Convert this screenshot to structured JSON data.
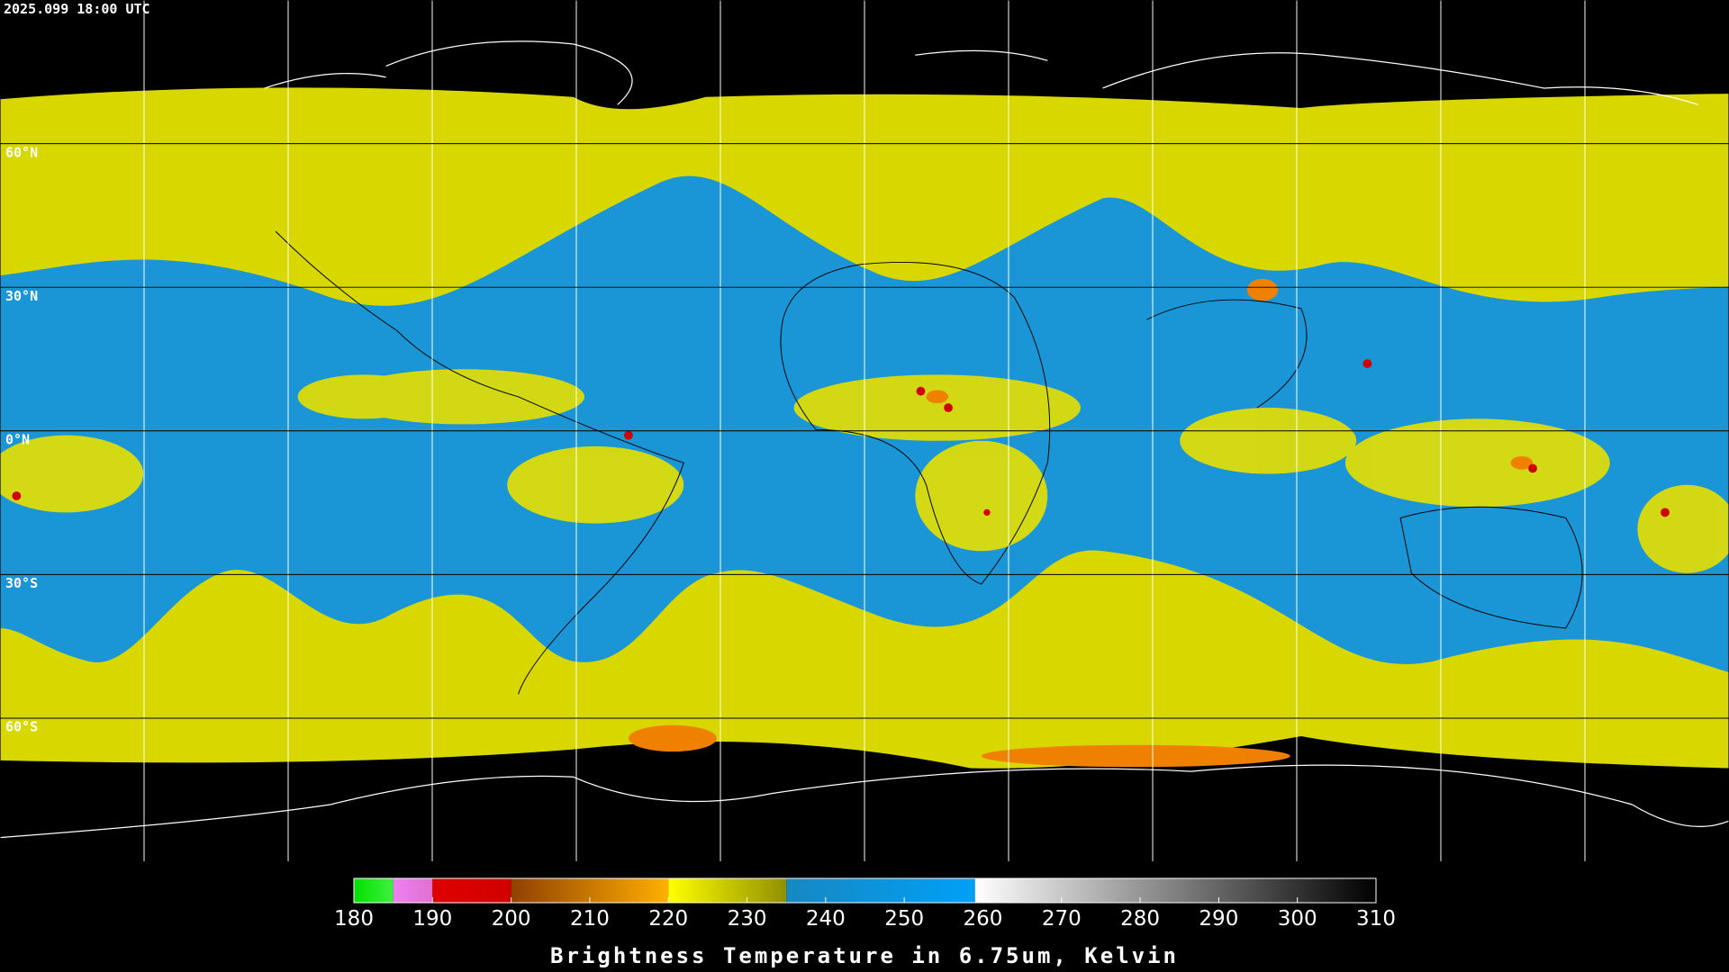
{
  "timestamp": "2025.099 18:00 UTC",
  "lat_labels": [
    "60°N",
    "30°N",
    "0°N",
    "30°S",
    "60°S"
  ],
  "colorbar": {
    "title": "Brightness Temperature in 6.75um, Kelvin",
    "range": [
      180,
      310
    ],
    "ticks": [
      180,
      190,
      200,
      210,
      220,
      230,
      240,
      250,
      260,
      270,
      280,
      290,
      300,
      310
    ],
    "segments": [
      {
        "from": 180,
        "to": 185,
        "colors": [
          "#00e000",
          "#40f040"
        ]
      },
      {
        "from": 185,
        "to": 190,
        "colors": [
          "#f080f0",
          "#e070d0"
        ]
      },
      {
        "from": 190,
        "to": 200,
        "colors": [
          "#e00000",
          "#d00000"
        ]
      },
      {
        "from": 200,
        "to": 220,
        "colors": [
          "#904000",
          "#ffb000"
        ]
      },
      {
        "from": 220,
        "to": 235,
        "colors": [
          "#ffff00",
          "#909000"
        ]
      },
      {
        "from": 235,
        "to": 259,
        "colors": [
          "#1888c0",
          "#00a0f8"
        ]
      },
      {
        "from": 259,
        "to": 310,
        "colors": [
          "#ffffff",
          "#000000"
        ]
      }
    ]
  }
}
